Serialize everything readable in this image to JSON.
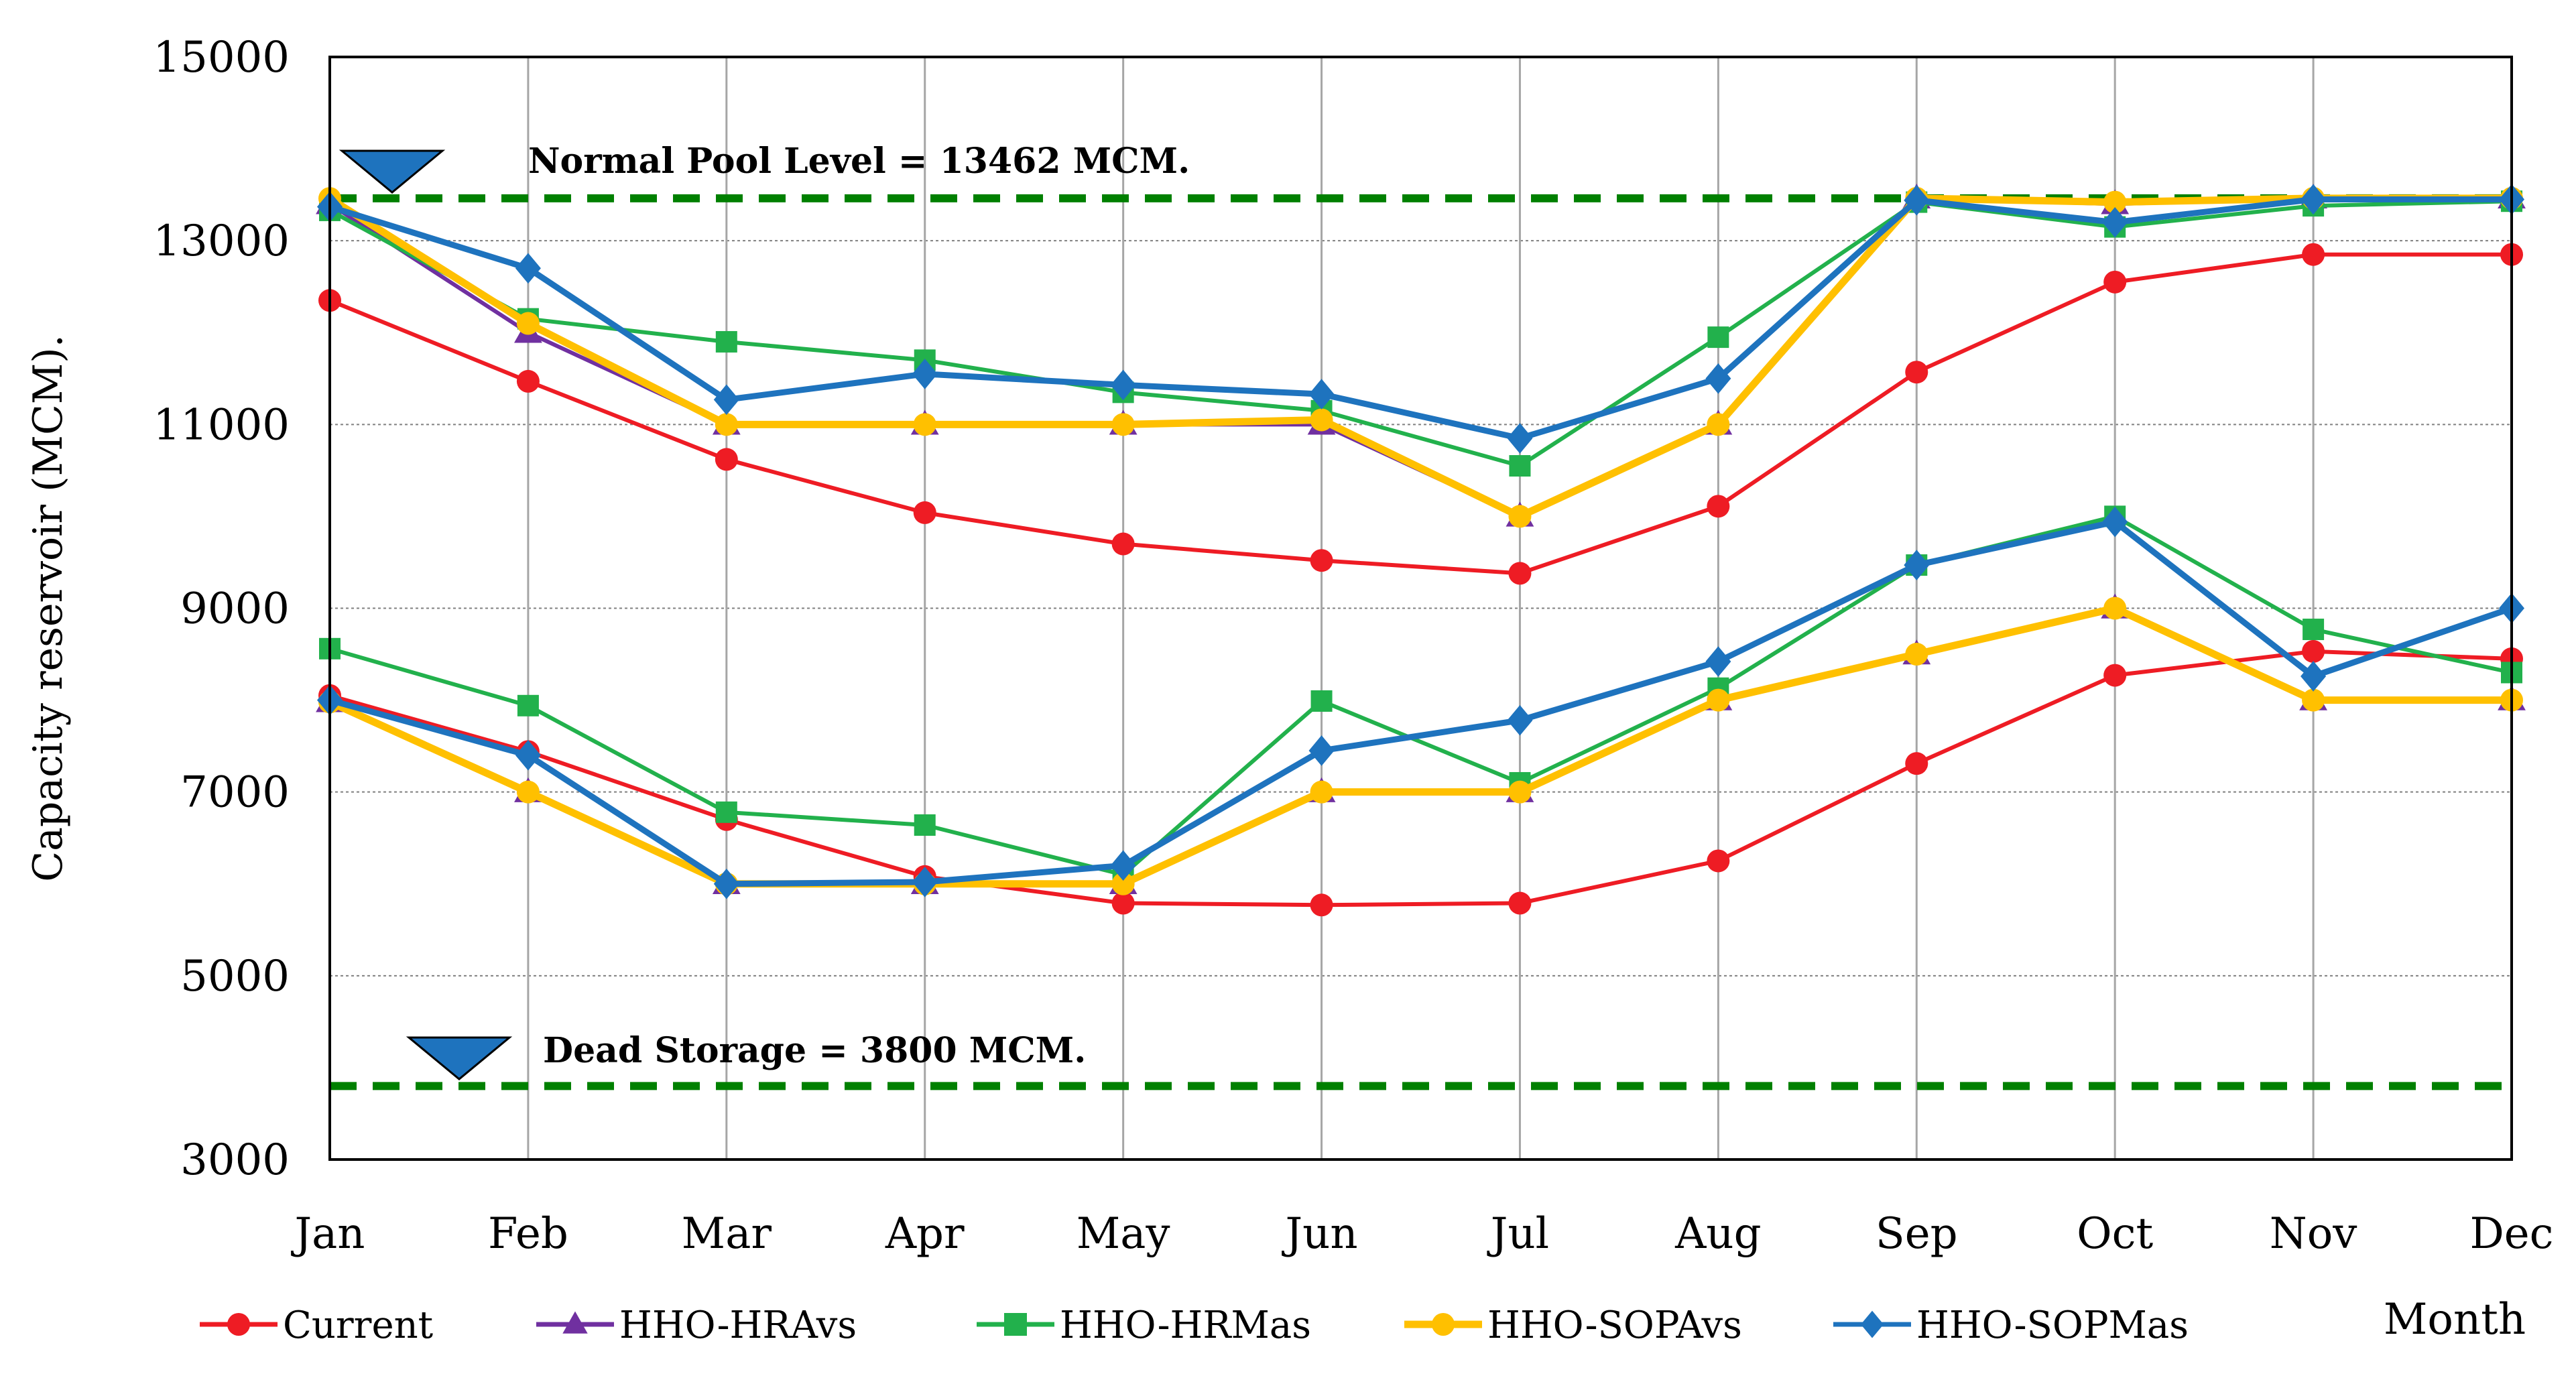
{
  "chart_data": {
    "type": "line",
    "title": "",
    "xlabel": "Month",
    "ylabel": "Capacity reservoir (MCM).",
    "categories": [
      "Jan",
      "Feb",
      "Mar",
      "Apr",
      "May",
      "Jun",
      "Jul",
      "Aug",
      "Sep",
      "Oct",
      "Nov",
      "Dec"
    ],
    "ylim": [
      3000,
      15000
    ],
    "yticks": [
      "3000",
      "5000",
      "7000",
      "9000",
      "11000",
      "13000",
      "15000"
    ],
    "grid": true,
    "legend_position": "bottom",
    "series": [
      {
        "name": "Current",
        "color": "#ee1c24",
        "marker": "circle",
        "group": "upper",
        "values": [
          12350,
          11470,
          10620,
          10040,
          9700,
          9520,
          9380,
          10110,
          11570,
          12550,
          12850,
          12850
        ]
      },
      {
        "name": "Current",
        "color": "#ee1c24",
        "marker": "circle",
        "group": "lower",
        "values": [
          8050,
          7440,
          6700,
          6080,
          5790,
          5770,
          5790,
          6250,
          7310,
          8270,
          8530,
          8450
        ]
      },
      {
        "name": "HHO-HRAvs",
        "color": "#7030a0",
        "marker": "triangle",
        "group": "upper",
        "values": [
          13400,
          12000,
          11000,
          11000,
          11000,
          11000,
          10000,
          11000,
          13462,
          13400,
          13462,
          13462
        ]
      },
      {
        "name": "HHO-HRAvs",
        "color": "#7030a0",
        "marker": "triangle",
        "group": "lower",
        "values": [
          7980,
          7000,
          6000,
          6000,
          6000,
          7000,
          7000,
          8000,
          8500,
          9000,
          8000,
          8000
        ]
      },
      {
        "name": "HHO-HRMas",
        "color": "#22b14c",
        "marker": "square",
        "group": "upper",
        "values": [
          13330,
          12150,
          11900,
          11700,
          11350,
          11150,
          10550,
          11950,
          13420,
          13150,
          13380,
          13430
        ]
      },
      {
        "name": "HHO-HRMas",
        "color": "#22b14c",
        "marker": "square",
        "group": "lower",
        "values": [
          8560,
          7940,
          6780,
          6640,
          6100,
          7990,
          7100,
          8130,
          9470,
          10000,
          8770,
          8300
        ]
      },
      {
        "name": "HHO-SOPAvs",
        "color": "#ffc000",
        "marker": "circle",
        "group": "upper",
        "values": [
          13460,
          12100,
          11000,
          11000,
          11000,
          11050,
          10000,
          11000,
          13462,
          13420,
          13462,
          13462
        ]
      },
      {
        "name": "HHO-SOPAvs",
        "color": "#ffc000",
        "marker": "circle",
        "group": "lower",
        "values": [
          7980,
          7000,
          6000,
          6000,
          6000,
          7000,
          7000,
          8000,
          8500,
          9000,
          8000,
          8000
        ]
      },
      {
        "name": "HHO-SOPMas",
        "color": "#1e73be",
        "marker": "diamond",
        "group": "upper",
        "values": [
          13370,
          12700,
          11270,
          11550,
          11430,
          11330,
          10850,
          11500,
          13440,
          13200,
          13450,
          13450
        ]
      },
      {
        "name": "HHO-SOPMas",
        "color": "#1e73be",
        "marker": "diamond",
        "group": "lower",
        "values": [
          8000,
          7400,
          6000,
          6020,
          6200,
          7450,
          7780,
          8420,
          9470,
          9940,
          8260,
          9000
        ]
      }
    ],
    "reference_lines": [
      {
        "label": "Normal Pool Level = 13462  MCM.",
        "value": 13462,
        "color": "#008000"
      },
      {
        "label": "Dead Storage = 3800 MCM.",
        "value": 3800,
        "color": "#008000"
      }
    ],
    "legend": [
      "Current",
      "HHO-HRAvs",
      "HHO-HRMas",
      "HHO-SOPAvs",
      "HHO-SOPMas"
    ],
    "marker_icon_color": "#1e73be"
  }
}
